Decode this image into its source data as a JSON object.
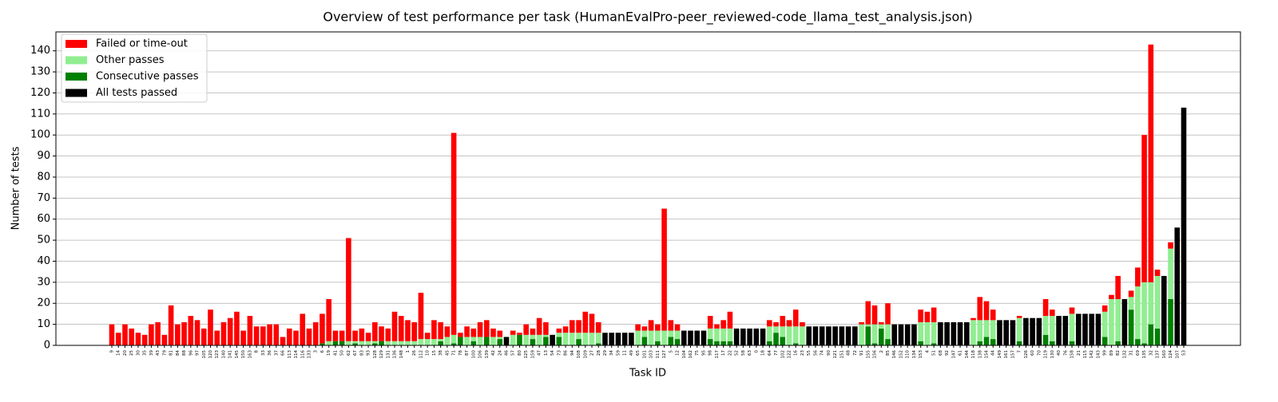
{
  "chart_data": {
    "type": "bar",
    "stacked": true,
    "title": "Overview of test performance per task (HumanEvalPro-peer_reviewed-code_llama_test_analysis.json)",
    "x_label": "Task ID",
    "y_label": "Number of tests",
    "categories": [
      "9",
      "14",
      "20",
      "25",
      "30",
      "35",
      "39",
      "43",
      "79",
      "81",
      "84",
      "88",
      "96",
      "97",
      "105",
      "120",
      "123",
      "140",
      "141",
      "145",
      "150",
      "163",
      "8",
      "33",
      "36",
      "37",
      "66",
      "113",
      "114",
      "116",
      "133",
      "3",
      "6",
      "19",
      "41",
      "50",
      "62",
      "67",
      "83",
      "93",
      "128",
      "129",
      "131",
      "136",
      "148",
      "1",
      "26",
      "112",
      "10",
      "15",
      "38",
      "45",
      "71",
      "78",
      "87",
      "100",
      "106",
      "139",
      "42",
      "24",
      "46",
      "57",
      "80",
      "125",
      "159",
      "47",
      "13",
      "54",
      "73",
      "86",
      "94",
      "108",
      "109",
      "27",
      "28",
      "29",
      "34",
      "59",
      "11",
      "49",
      "65",
      "101",
      "103",
      "111",
      "127",
      "5",
      "12",
      "104",
      "162",
      "75",
      "95",
      "98",
      "117",
      "17",
      "22",
      "52",
      "58",
      "63",
      "0",
      "18",
      "64",
      "77",
      "102",
      "122",
      "16",
      "23",
      "55",
      "56",
      "74",
      "90",
      "121",
      "151",
      "48",
      "72",
      "91",
      "155",
      "156",
      "2",
      "85",
      "146",
      "152",
      "110",
      "134",
      "153",
      "4",
      "51",
      "68",
      "92",
      "147",
      "61",
      "144",
      "118",
      "138",
      "154",
      "44",
      "149",
      "161",
      "157",
      "7",
      "126",
      "60",
      "70",
      "119",
      "130",
      "40",
      "76",
      "158",
      "21",
      "115",
      "142",
      "143",
      "99",
      "89",
      "82",
      "132",
      "31",
      "69",
      "135",
      "32",
      "137",
      "160",
      "124",
      "107",
      "53"
    ],
    "series": [
      {
        "name": "Failed or time-out",
        "color": "#ff0000",
        "values": [
          10,
          6,
          10,
          8,
          6,
          5,
          10,
          11,
          5,
          19,
          10,
          11,
          14,
          12,
          8,
          17,
          7,
          11,
          13,
          16,
          7,
          14,
          9,
          9,
          10,
          10,
          4,
          8,
          7,
          15,
          8,
          11,
          14,
          20,
          5,
          5,
          49,
          5,
          6,
          4,
          9,
          7,
          6,
          14,
          12,
          10,
          9,
          22,
          3,
          9,
          8,
          5,
          96,
          2,
          5,
          4,
          7,
          8,
          4,
          3,
          0,
          2,
          1,
          5,
          3,
          8,
          6,
          0,
          2,
          3,
          6,
          6,
          10,
          9,
          5,
          0,
          0,
          0,
          0,
          0,
          3,
          2,
          5,
          3,
          58,
          5,
          3,
          0,
          0,
          0,
          0,
          6,
          2,
          4,
          8,
          0,
          0,
          0,
          0,
          0,
          3,
          2,
          5,
          3,
          8,
          2,
          0,
          0,
          0,
          0,
          0,
          0,
          0,
          0,
          1,
          11,
          9,
          1,
          10,
          0,
          0,
          0,
          0,
          6,
          5,
          7,
          0,
          0,
          0,
          0,
          0,
          1,
          11,
          9,
          5,
          0,
          0,
          0,
          1,
          0,
          0,
          0,
          8,
          3,
          0,
          0,
          3,
          0,
          0,
          0,
          0,
          3,
          2,
          11,
          0,
          3,
          9,
          70,
          113,
          3,
          0,
          3,
          0,
          0
        ]
      },
      {
        "name": "Other passes",
        "color": "#90ee90",
        "values": [
          0,
          0,
          0,
          0,
          0,
          0,
          0,
          0,
          0,
          0,
          0,
          0,
          0,
          0,
          0,
          0,
          0,
          0,
          0,
          0,
          0,
          0,
          0,
          0,
          0,
          0,
          0,
          0,
          0,
          0,
          0,
          0,
          0,
          2,
          0,
          0,
          2,
          1,
          2,
          2,
          1,
          0,
          2,
          2,
          2,
          2,
          2,
          3,
          3,
          3,
          1,
          4,
          4,
          0,
          4,
          2,
          4,
          0,
          4,
          1,
          0,
          5,
          0,
          5,
          2,
          5,
          1,
          0,
          2,
          6,
          6,
          3,
          6,
          6,
          5,
          0,
          0,
          0,
          0,
          0,
          7,
          3,
          7,
          5,
          7,
          3,
          4,
          0,
          0,
          0,
          0,
          5,
          6,
          6,
          6,
          0,
          0,
          0,
          0,
          0,
          7,
          3,
          5,
          9,
          8,
          9,
          0,
          0,
          0,
          0,
          0,
          0,
          0,
          0,
          10,
          1,
          9,
          2,
          7,
          0,
          0,
          0,
          0,
          9,
          11,
          10,
          0,
          0,
          0,
          0,
          0,
          12,
          10,
          8,
          9,
          0,
          0,
          0,
          11,
          0,
          0,
          0,
          9,
          12,
          0,
          0,
          13,
          0,
          0,
          0,
          0,
          12,
          22,
          20,
          0,
          6,
          25,
          29,
          20,
          25,
          0,
          24,
          0,
          0
        ]
      },
      {
        "name": "Consecutive passes",
        "color": "#008000",
        "values": [
          0,
          0,
          0,
          0,
          0,
          0,
          0,
          0,
          0,
          0,
          0,
          0,
          0,
          0,
          0,
          0,
          0,
          0,
          0,
          0,
          0,
          0,
          0,
          0,
          0,
          0,
          0,
          0,
          0,
          0,
          0,
          0,
          1,
          0,
          2,
          2,
          0,
          1,
          0,
          0,
          1,
          2,
          0,
          0,
          0,
          0,
          0,
          0,
          0,
          0,
          2,
          0,
          1,
          4,
          0,
          2,
          0,
          4,
          0,
          3,
          0,
          0,
          5,
          0,
          3,
          0,
          4,
          0,
          4,
          0,
          0,
          3,
          0,
          0,
          1,
          0,
          0,
          0,
          0,
          0,
          0,
          4,
          0,
          2,
          0,
          4,
          3,
          0,
          0,
          0,
          0,
          3,
          2,
          2,
          2,
          0,
          0,
          0,
          0,
          0,
          2,
          6,
          4,
          0,
          1,
          0,
          0,
          0,
          0,
          0,
          0,
          0,
          0,
          0,
          0,
          9,
          1,
          8,
          3,
          0,
          0,
          0,
          0,
          2,
          0,
          1,
          0,
          0,
          0,
          0,
          0,
          0,
          2,
          4,
          3,
          0,
          0,
          0,
          2,
          0,
          0,
          0,
          5,
          2,
          0,
          0,
          2,
          0,
          0,
          0,
          0,
          4,
          0,
          2,
          0,
          17,
          3,
          1,
          10,
          8,
          0,
          22,
          0,
          0
        ]
      },
      {
        "name": "All tests passed",
        "color": "#000000",
        "values": [
          0,
          0,
          0,
          0,
          0,
          0,
          0,
          0,
          0,
          0,
          0,
          0,
          0,
          0,
          0,
          0,
          0,
          0,
          0,
          0,
          0,
          0,
          0,
          0,
          0,
          0,
          0,
          0,
          0,
          0,
          0,
          0,
          0,
          0,
          0,
          0,
          0,
          0,
          0,
          0,
          0,
          0,
          0,
          0,
          0,
          0,
          0,
          0,
          0,
          0,
          0,
          0,
          0,
          0,
          0,
          0,
          0,
          0,
          0,
          0,
          4,
          0,
          0,
          0,
          0,
          0,
          0,
          5,
          0,
          0,
          0,
          0,
          0,
          0,
          0,
          6,
          6,
          6,
          6,
          6,
          0,
          0,
          0,
          0,
          0,
          0,
          0,
          7,
          7,
          7,
          7,
          0,
          0,
          0,
          0,
          8,
          8,
          8,
          8,
          8,
          0,
          0,
          0,
          0,
          0,
          0,
          9,
          9,
          9,
          9,
          9,
          9,
          9,
          9,
          0,
          0,
          0,
          0,
          0,
          10,
          10,
          10,
          10,
          0,
          0,
          0,
          11,
          11,
          11,
          11,
          11,
          0,
          0,
          0,
          0,
          12,
          12,
          12,
          0,
          13,
          13,
          13,
          0,
          0,
          14,
          14,
          0,
          15,
          15,
          15,
          15,
          0,
          0,
          0,
          22,
          0,
          0,
          0,
          0,
          0,
          33,
          0,
          56,
          113
        ]
      }
    ],
    "ylim": [
      0,
      149
    ],
    "yticks": [
      0,
      10,
      20,
      30,
      40,
      50,
      60,
      70,
      80,
      90,
      100,
      110,
      120,
      130,
      140
    ],
    "grid": true,
    "legend": "upper left"
  }
}
